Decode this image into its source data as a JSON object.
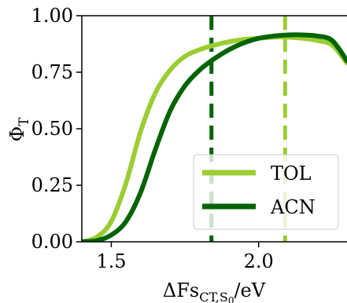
{
  "chart_data": {
    "type": "line",
    "xlabel": "ΔFs",
    "xlabel_sub": "CT,S",
    "xlabel_sub_sub": "0",
    "xlabel_unit": "/eV",
    "ylabel": "Φ",
    "ylabel_sub": "T",
    "xlim": [
      1.4,
      2.3
    ],
    "ylim": [
      0.0,
      1.0
    ],
    "xticks": [
      1.5,
      2.0
    ],
    "xtick_labels": [
      "1.5",
      "2.0"
    ],
    "yticks": [
      0.0,
      0.25,
      0.5,
      0.75,
      1.0
    ],
    "ytick_labels": [
      "0.00",
      "0.25",
      "0.50",
      "0.75",
      "1.00"
    ],
    "grid": false,
    "legend_position": "lower-right",
    "series": [
      {
        "name": "TOL",
        "color": "#9acd32",
        "x": [
          1.4,
          1.45,
          1.5,
          1.55,
          1.6,
          1.65,
          1.7,
          1.75,
          1.8,
          1.85,
          1.9,
          1.95,
          2.0,
          2.05,
          2.1,
          2.15,
          2.2,
          2.25,
          2.3
        ],
        "y": [
          0.0,
          0.02,
          0.09,
          0.26,
          0.49,
          0.66,
          0.76,
          0.82,
          0.85,
          0.87,
          0.885,
          0.895,
          0.9,
          0.905,
          0.905,
          0.9,
          0.89,
          0.87,
          0.79
        ],
        "vline": 2.09
      },
      {
        "name": "ACN",
        "color": "#006400",
        "x": [
          1.4,
          1.45,
          1.5,
          1.55,
          1.6,
          1.65,
          1.7,
          1.75,
          1.8,
          1.85,
          1.9,
          1.95,
          2.0,
          2.05,
          2.1,
          2.15,
          2.2,
          2.25,
          2.3
        ],
        "y": [
          0.0,
          0.005,
          0.03,
          0.09,
          0.22,
          0.41,
          0.58,
          0.69,
          0.76,
          0.81,
          0.85,
          0.88,
          0.9,
          0.91,
          0.915,
          0.915,
          0.91,
          0.89,
          0.8
        ],
        "vline": 1.84
      }
    ]
  }
}
